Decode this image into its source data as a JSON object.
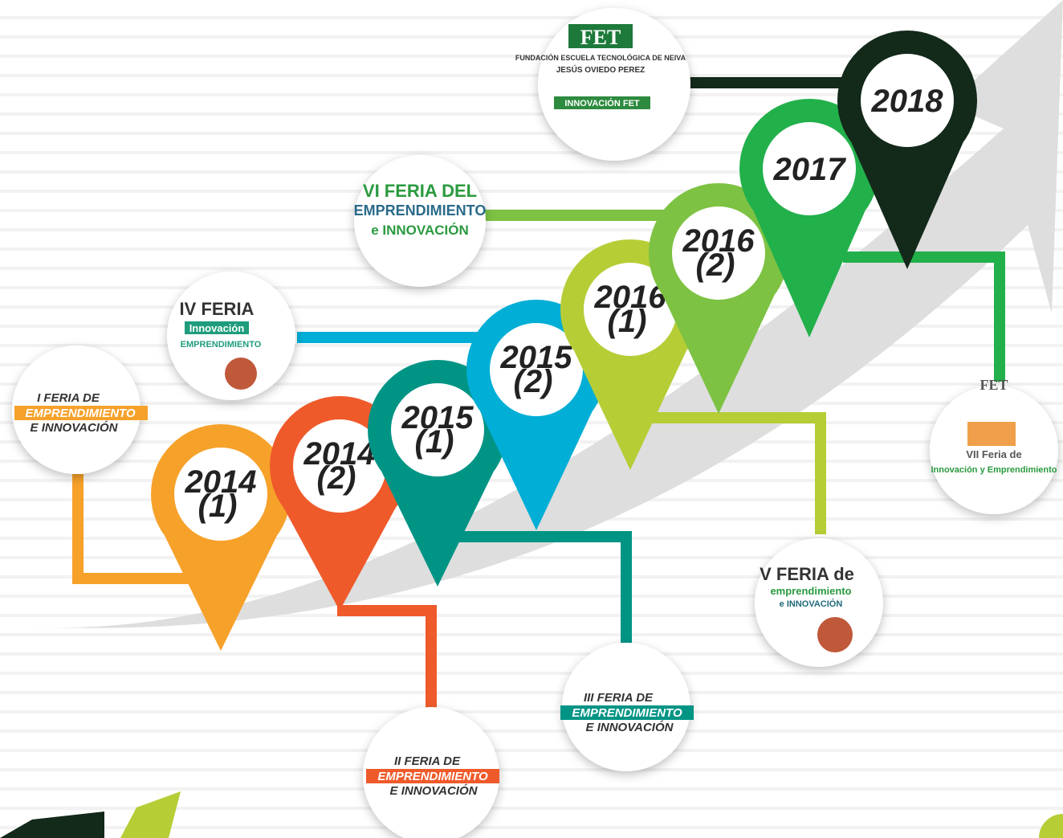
{
  "pins": [
    {
      "year": "2014",
      "part": "(1)"
    },
    {
      "year": "2014",
      "part": "(2)"
    },
    {
      "year": "2015",
      "part": "(1)"
    },
    {
      "year": "2015",
      "part": "(2)"
    },
    {
      "year": "2016",
      "part": "(1)"
    },
    {
      "year": "2016",
      "part": "(2)"
    },
    {
      "year": "2017"
    },
    {
      "year": "2018"
    }
  ],
  "ferias": [
    {
      "line1": "I FERIA DE",
      "highlight": "EMPRENDIMIENTO",
      "line3": "E INNOVACIÓN"
    },
    {
      "line1": "II FERIA DE",
      "highlight": "EMPRENDIMIENTO",
      "line3": "E INNOVACIÓN"
    },
    {
      "line1": "III FERIA DE",
      "highlight": "EMPRENDIMIENTO",
      "line3": "E INNOVACIÓN"
    }
  ],
  "logos": [
    {
      "title": "FET",
      "text": "FUNDACIÓN ESCUELA TECNOLÓGICA DE NEIVA",
      "sub": "JESÚS OVIEDO PEREZ",
      "banner": "INNOVACIÓN FET"
    },
    {
      "title": "VI FERIA DEL",
      "text": "EMPRENDIMIENTO",
      "sub": "e INNOVACIÓN"
    },
    {
      "title": "IV FERIA",
      "text": "Innovación",
      "sub": "EMPRENDIMIENTO"
    },
    {
      "title": "V FERIA de",
      "text": "emprendimiento",
      "sub": "e INNOVACIÓN"
    },
    {
      "title": "FET",
      "text": "VII Feria de",
      "sub": "Innovación y Emprendimiento"
    }
  ]
}
